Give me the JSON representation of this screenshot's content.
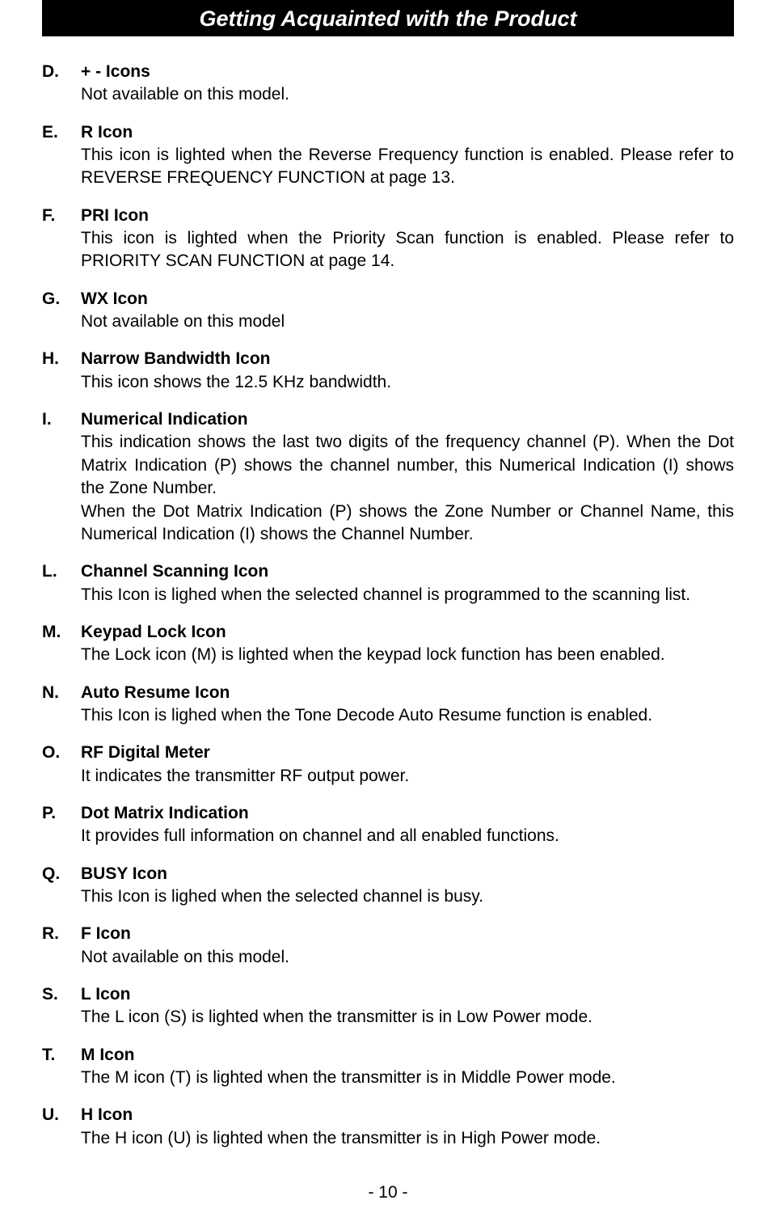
{
  "page": {
    "header_title": "Getting Acquainted with the Product",
    "footer": "- 10 -",
    "colors": {
      "header_bg": "#000000",
      "header_text": "#ffffff",
      "body_bg": "#ffffff",
      "body_text": "#000000"
    },
    "typography": {
      "header_fontsize": 27,
      "body_fontsize": 21,
      "header_italic": true,
      "header_bold": true
    }
  },
  "items": [
    {
      "letter": "D.",
      "title": "+ - Icons",
      "desc": "Not available on this model.",
      "justify": false
    },
    {
      "letter": "E.",
      "title": "R Icon",
      "desc": "This icon is lighted when the Reverse Frequency function is enabled. Please refer to REVERSE FREQUENCY FUNCTION at page 13.",
      "justify": true
    },
    {
      "letter": "F.",
      "title": "PRI Icon",
      "desc": "This icon is lighted when the Priority Scan function is enabled. Please refer to PRIORITY SCAN FUNCTION at page 14.",
      "justify": true
    },
    {
      "letter": "G.",
      "title": "WX Icon",
      "desc": "Not available on this model",
      "justify": false
    },
    {
      "letter": "H.",
      "title": "Narrow Bandwidth Icon",
      "desc": "This icon shows the 12.5 KHz bandwidth.",
      "justify": false
    },
    {
      "letter": "I.",
      "title": "Numerical Indication",
      "desc": "This indication shows the last two digits of the frequency channel (P). When the Dot Matrix Indication (P) shows the channel number, this Numerical Indication (I) shows the Zone Number.\nWhen the Dot Matrix Indication (P) shows the Zone Number or Channel Name, this Numerical Indication (I) shows the Channel Number.",
      "justify": true
    },
    {
      "letter": "L.",
      "title": "Channel Scanning Icon",
      "desc": "This Icon is lighed when the selected channel is programmed to the scanning list.",
      "justify": false
    },
    {
      "letter": "M.",
      "title": "Keypad Lock Icon",
      "desc": "The Lock icon (M) is lighted when the keypad lock function has been enabled.",
      "justify": false
    },
    {
      "letter": "N.",
      "title": "Auto Resume Icon",
      "desc": "This Icon is lighed when the Tone Decode Auto Resume function is enabled.",
      "justify": false
    },
    {
      "letter": "O.",
      "title": "RF Digital Meter",
      "desc": "It indicates the transmitter RF output power.",
      "justify": false
    },
    {
      "letter": "P.",
      "title": "Dot Matrix Indication",
      "desc": "It provides full information on channel and all enabled functions.",
      "justify": false
    },
    {
      "letter": "Q.",
      "title": "BUSY Icon",
      "desc": "This Icon is lighed when the selected channel is busy.",
      "justify": false
    },
    {
      "letter": "R.",
      "title": "F Icon",
      "desc": "Not available on this model.",
      "justify": false
    },
    {
      "letter": "S.",
      "title": "L Icon",
      "desc": "The L icon (S) is lighted when the transmitter is in Low Power mode.",
      "justify": false
    },
    {
      "letter": "T.",
      "title": "M Icon",
      "desc": "The M icon (T) is lighted when the transmitter is in Middle Power mode.",
      "justify": false
    },
    {
      "letter": "U.",
      "title": "H Icon",
      "desc": "The H icon (U) is lighted when the transmitter is in High Power mode.",
      "justify": false
    }
  ]
}
